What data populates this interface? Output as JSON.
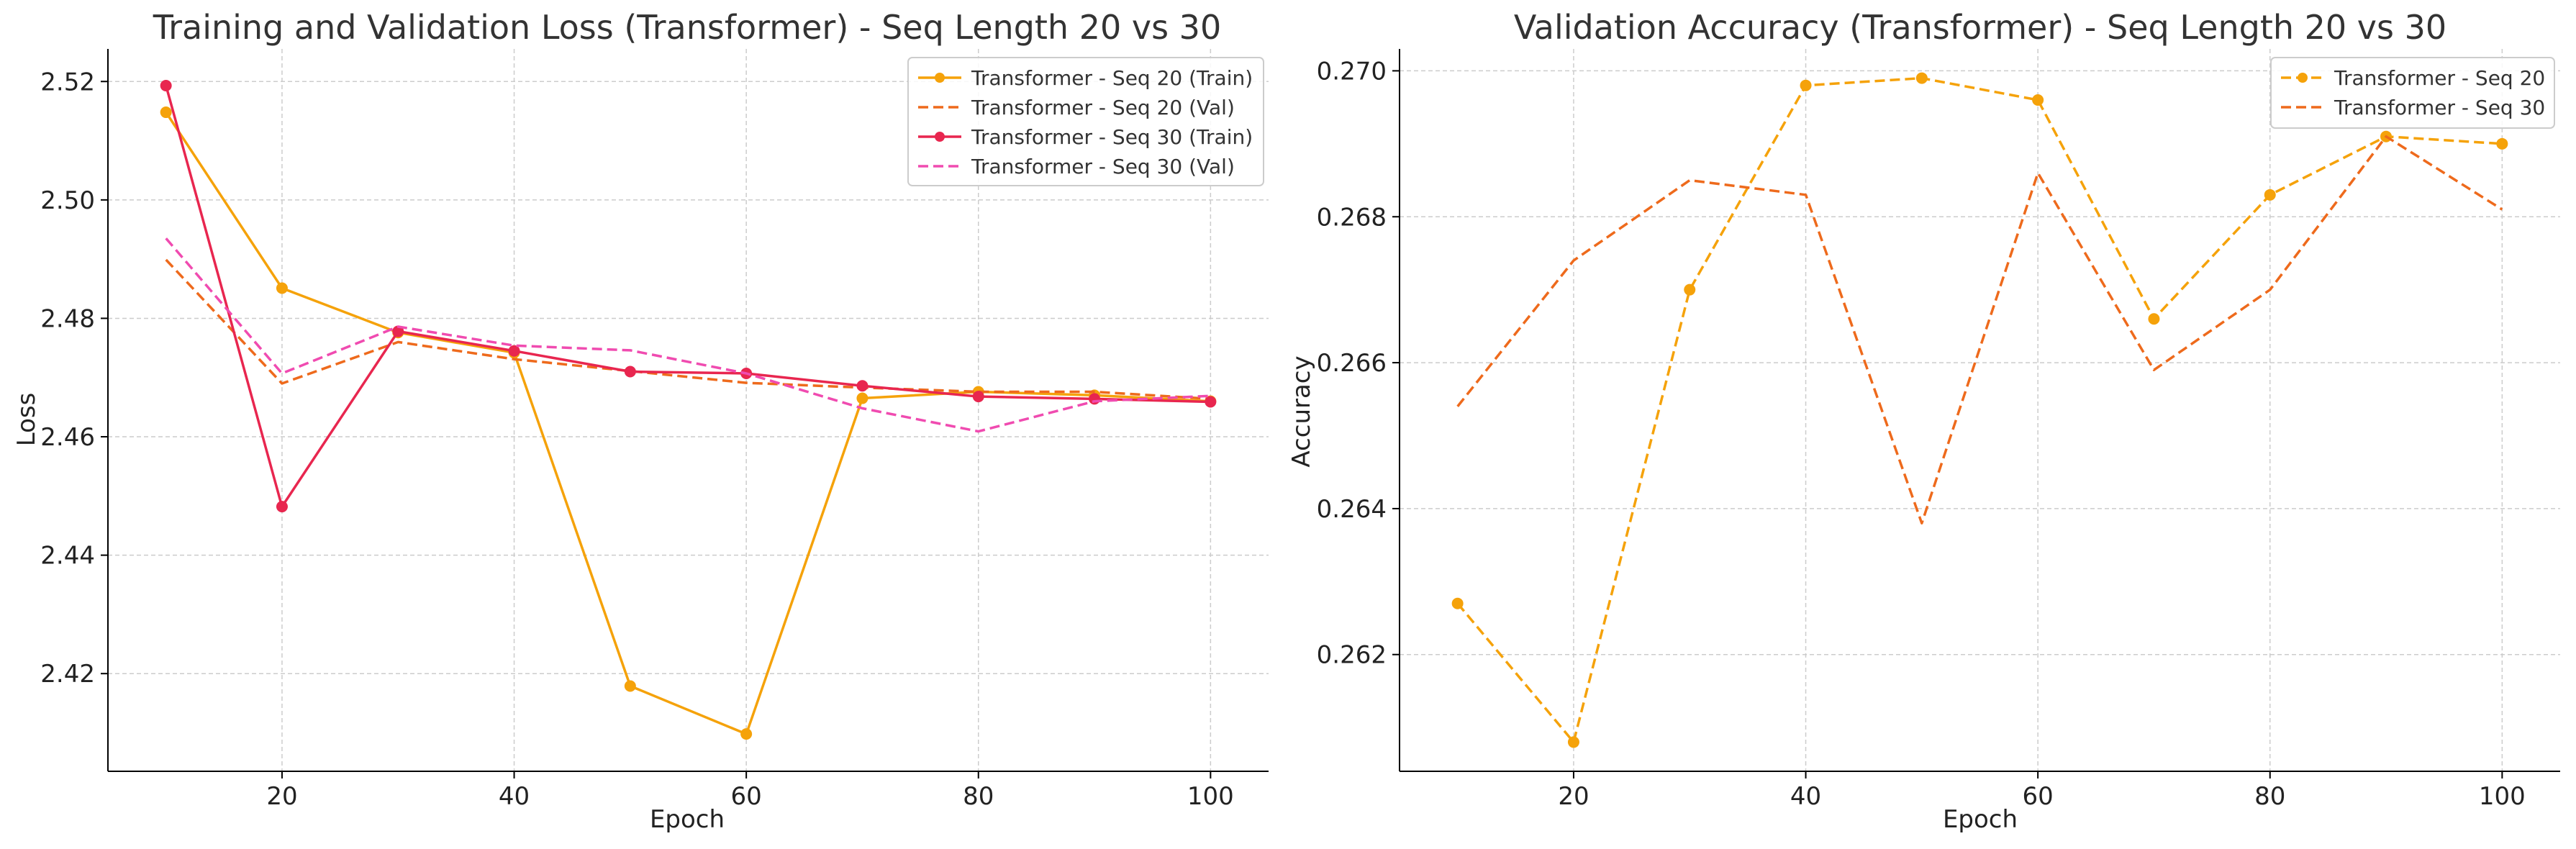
{
  "chart_data": [
    {
      "type": "line",
      "title": "Training and Validation Loss (Transformer) - Seq Length 20 vs 30",
      "xlabel": "Epoch",
      "ylabel": "Loss",
      "xlim": [
        5,
        105
      ],
      "ylim": [
        2.4035,
        2.5255
      ],
      "xticks": [
        20,
        40,
        60,
        80,
        100
      ],
      "yticks": [
        2.42,
        2.44,
        2.46,
        2.48,
        2.5,
        2.52
      ],
      "ytick_labels": [
        "2.42",
        "2.44",
        "2.46",
        "2.48",
        "2.50",
        "2.52"
      ],
      "grid": true,
      "legend_position": "top-right",
      "x": [
        10,
        20,
        30,
        40,
        50,
        60,
        70,
        80,
        90,
        100
      ],
      "series": [
        {
          "name": "Transformer - Seq 20 (Train)",
          "color": "#f5a20a",
          "style": "solid",
          "marker": true,
          "values": [
            2.5148,
            2.4851,
            2.4776,
            2.4742,
            2.4179,
            2.4098,
            2.4665,
            2.4676,
            2.467,
            2.466
          ]
        },
        {
          "name": "Transformer - Seq 20 (Val)",
          "color": "#ee6a1c",
          "style": "dashed",
          "marker": false,
          "values": [
            2.4899,
            2.469,
            2.476,
            2.4731,
            2.4711,
            2.4691,
            2.4683,
            2.4676,
            2.4676,
            2.4664
          ]
        },
        {
          "name": "Transformer - Seq 30 (Train)",
          "color": "#e8264f",
          "style": "solid",
          "marker": true,
          "values": [
            2.5193,
            2.4482,
            2.4778,
            2.4745,
            2.471,
            2.4707,
            2.4686,
            2.4668,
            2.4664,
            2.4659
          ]
        },
        {
          "name": "Transformer - Seq 30 (Val)",
          "color": "#f04bb0",
          "style": "dashed",
          "marker": false,
          "values": [
            2.4935,
            2.4707,
            2.4786,
            2.4754,
            2.4746,
            2.4707,
            2.4648,
            2.4609,
            2.466,
            2.4669
          ]
        }
      ]
    },
    {
      "type": "line",
      "title": "Validation Accuracy (Transformer) - Seq Length 20 vs 30",
      "xlabel": "Epoch",
      "ylabel": "Accuracy",
      "xlim": [
        5,
        105
      ],
      "ylim": [
        0.2604,
        0.2703
      ],
      "xticks": [
        20,
        40,
        60,
        80,
        100
      ],
      "yticks": [
        0.262,
        0.264,
        0.266,
        0.268,
        0.27
      ],
      "ytick_labels": [
        "0.262",
        "0.264",
        "0.266",
        "0.268",
        "0.270"
      ],
      "grid": true,
      "legend_position": "top-right",
      "x": [
        10,
        20,
        30,
        40,
        50,
        60,
        70,
        80,
        90,
        100
      ],
      "series": [
        {
          "name": "Transformer - Seq 20",
          "color": "#f5a20a",
          "style": "dashed",
          "marker": true,
          "values": [
            0.2627,
            0.2608,
            0.267,
            0.2698,
            0.2699,
            0.2696,
            0.2666,
            0.2683,
            0.2691,
            0.269
          ]
        },
        {
          "name": "Transformer - Seq 30",
          "color": "#ee6a1c",
          "style": "dashed",
          "marker": false,
          "values": [
            0.2654,
            0.2674,
            0.2685,
            0.2683,
            0.2638,
            0.2686,
            0.2659,
            0.267,
            0.2691,
            0.2681
          ]
        }
      ]
    }
  ]
}
